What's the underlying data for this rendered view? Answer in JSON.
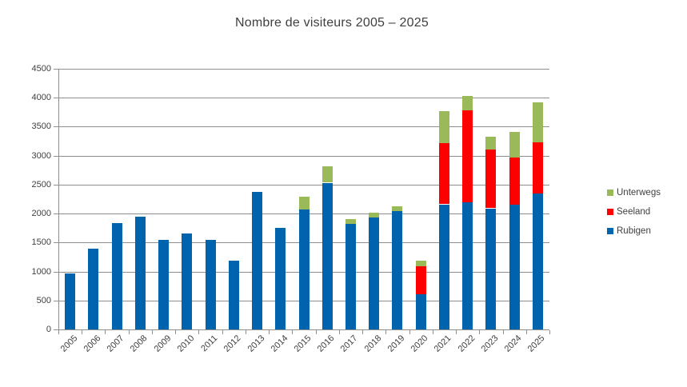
{
  "title": "Nombre de visiteurs 2005 – 2025",
  "colors": {
    "rubigen": "#0063ad",
    "seeland": "#ff0000",
    "unterwegs": "#9aba59",
    "gridline": "#8e8e8e",
    "text": "#3f3f3f"
  },
  "legend": {
    "items": [
      {
        "label": "Unterwegs",
        "color": "#9aba59"
      },
      {
        "label": "Seeland",
        "color": "#ff0000"
      },
      {
        "label": "Rubigen",
        "color": "#0063ad"
      }
    ]
  },
  "chart_data": {
    "type": "bar",
    "stacked": true,
    "title": "Nombre de visiteurs 2005 – 2025",
    "xlabel": "",
    "ylabel": "",
    "categories": [
      "2005",
      "2006",
      "2007",
      "2008",
      "2009",
      "2010",
      "2011",
      "2012",
      "2013",
      "2014",
      "2015",
      "2016",
      "2017",
      "2018",
      "2019",
      "2020",
      "2021",
      "2022",
      "2023",
      "2024",
      "2025"
    ],
    "series": [
      {
        "name": "Rubigen",
        "color": "#0063ad",
        "values": [
          960,
          1390,
          1840,
          1950,
          1540,
          1660,
          1550,
          1190,
          2370,
          1750,
          2070,
          2530,
          1830,
          1930,
          2040,
          610,
          2160,
          2190,
          2090,
          2150,
          2350
        ]
      },
      {
        "name": "Seeland",
        "color": "#ff0000",
        "values": [
          0,
          0,
          0,
          0,
          0,
          0,
          0,
          0,
          0,
          0,
          0,
          0,
          0,
          0,
          0,
          485,
          1055,
          1590,
          1010,
          825,
          880
        ]
      },
      {
        "name": "Unterwegs",
        "color": "#9aba59",
        "values": [
          0,
          0,
          0,
          0,
          0,
          0,
          0,
          0,
          0,
          0,
          215,
          280,
          80,
          85,
          85,
          90,
          555,
          250,
          220,
          440,
          690
        ]
      }
    ],
    "ylim": [
      0,
      4500
    ],
    "yticks": [
      0,
      500,
      1000,
      1500,
      2000,
      2500,
      3000,
      3500,
      4000,
      4500
    ],
    "grid": true,
    "legend_position": "right",
    "legend_order_top_to_bottom": [
      "Unterwegs",
      "Seeland",
      "Rubigen"
    ]
  }
}
